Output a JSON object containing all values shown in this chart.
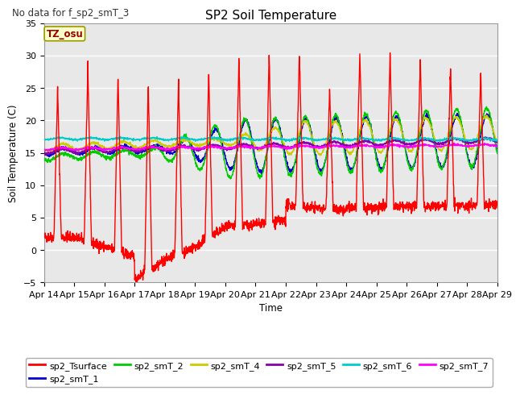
{
  "title": "SP2 Soil Temperature",
  "ylabel": "Soil Temperature (C)",
  "xlabel": "Time",
  "no_data_text": "No data for f_sp2_smT_3",
  "tz_label": "TZ_osu",
  "ylim": [
    -5,
    35
  ],
  "yticks": [
    -5,
    0,
    5,
    10,
    15,
    20,
    25,
    30,
    35
  ],
  "x_tick_labels": [
    "Apr 14",
    "Apr 15",
    "Apr 16",
    "Apr 17",
    "Apr 18",
    "Apr 19",
    "Apr 20",
    "Apr 21",
    "Apr 22",
    "Apr 23",
    "Apr 24",
    "Apr 25",
    "Apr 26",
    "Apr 27",
    "Apr 28",
    "Apr 29"
  ],
  "background_color": "#e8e8e8",
  "grid_color": "#ffffff",
  "series_colors": {
    "sp2_Tsurface": "#ff0000",
    "sp2_smT_1": "#0000cc",
    "sp2_smT_2": "#00cc00",
    "sp2_smT_4": "#cccc00",
    "sp2_smT_5": "#8800aa",
    "sp2_smT_6": "#00cccc",
    "sp2_smT_7": "#ff00ff"
  },
  "figsize": [
    6.4,
    4.8
  ],
  "dpi": 100
}
